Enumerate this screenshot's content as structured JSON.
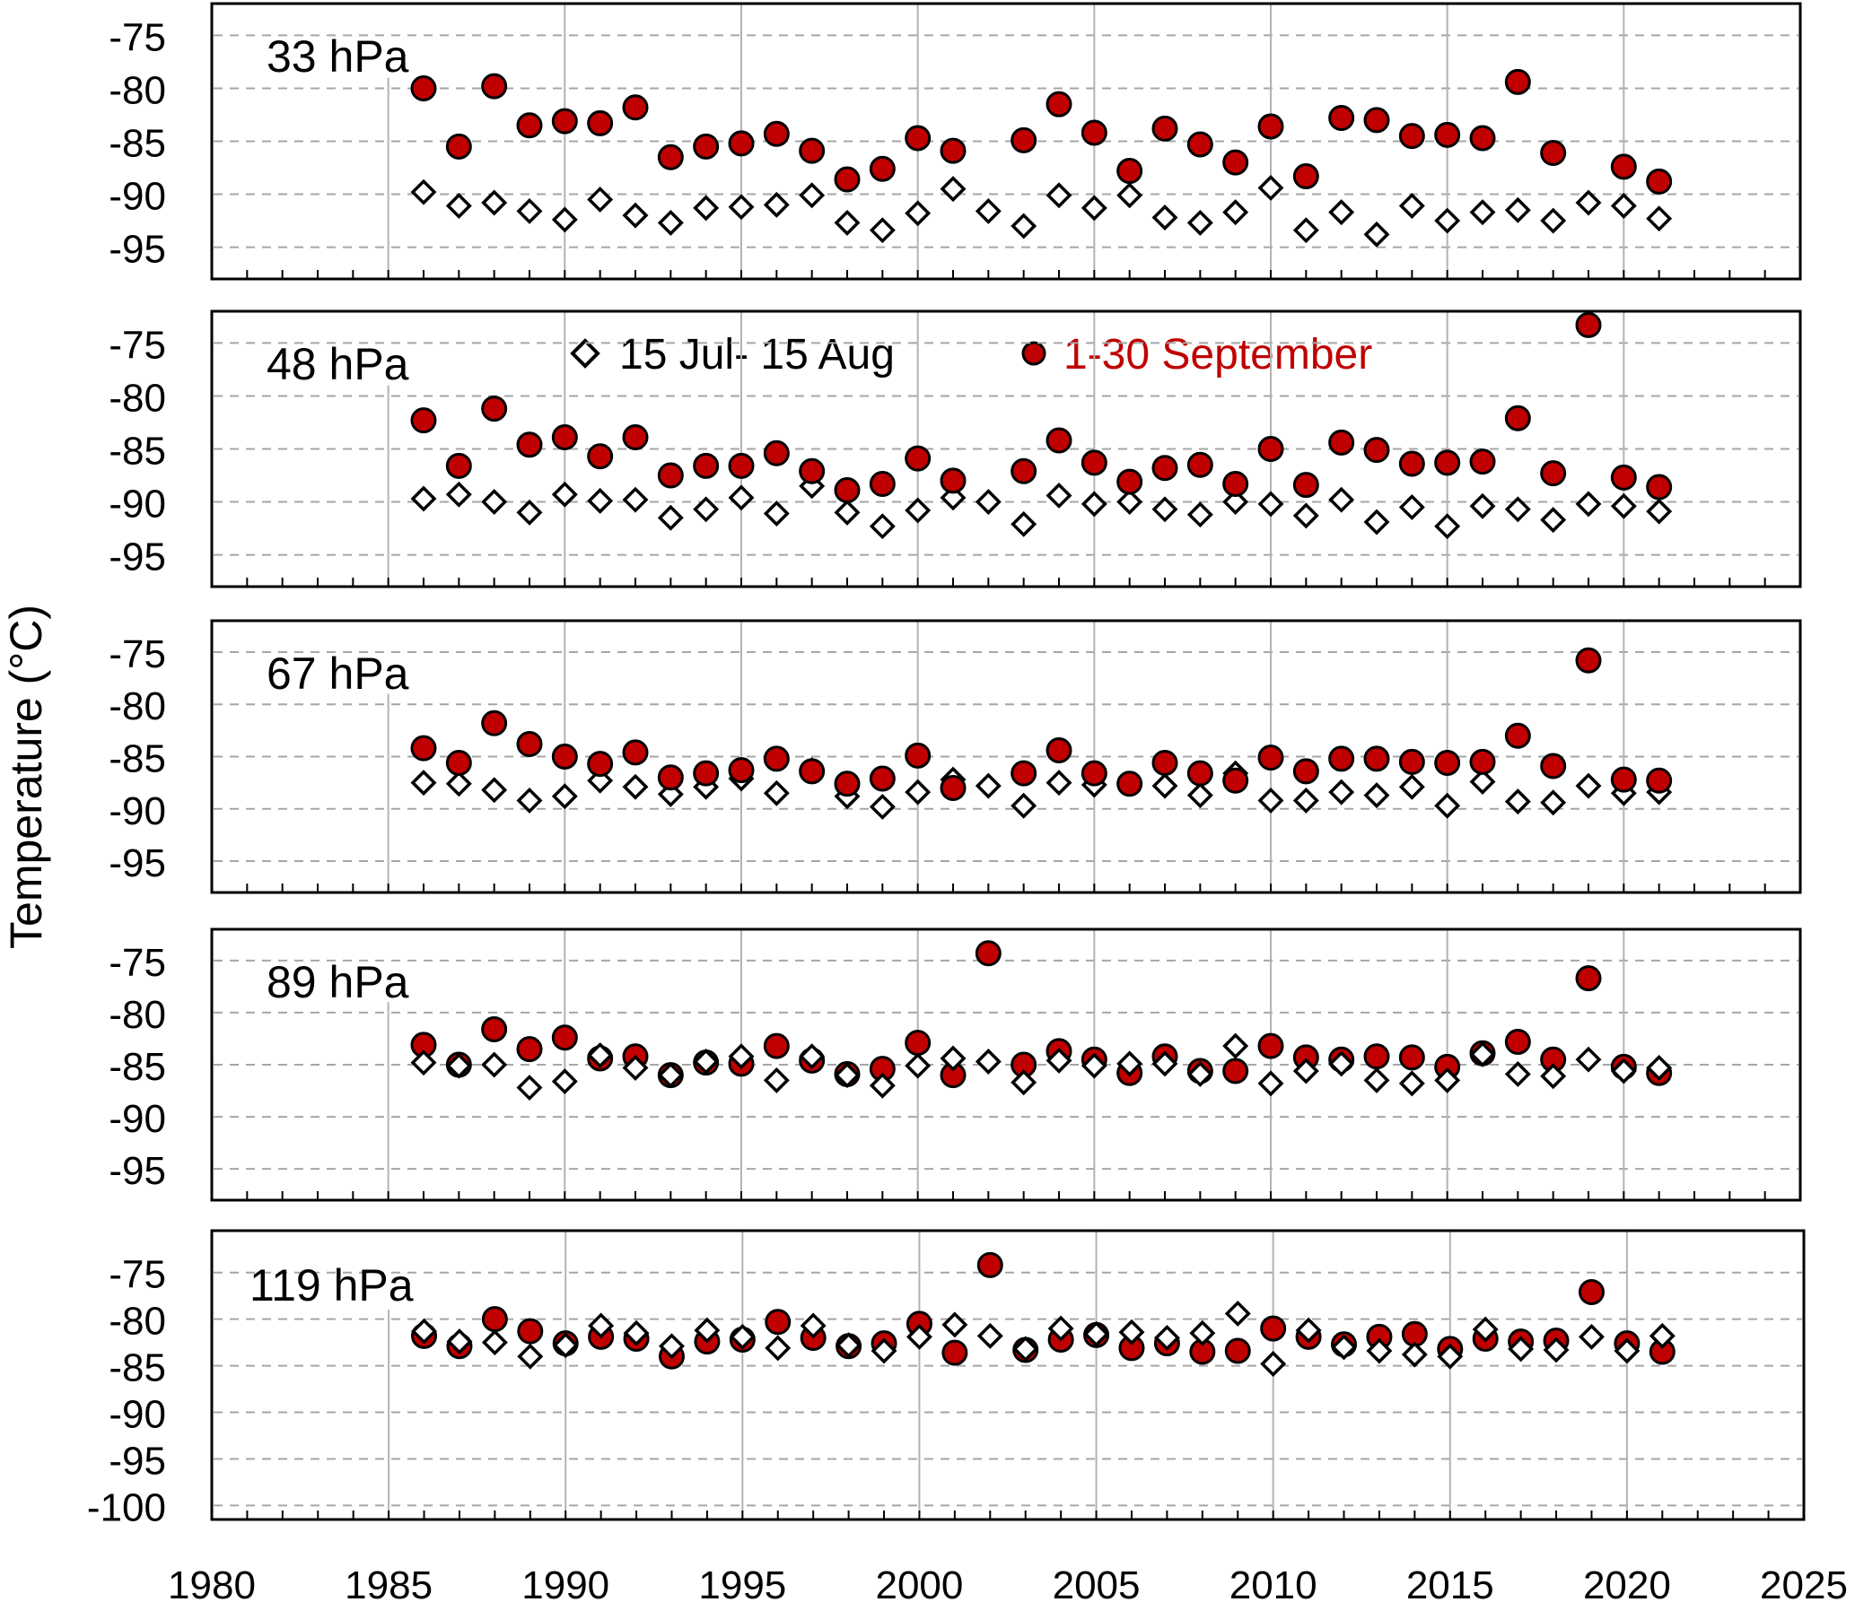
{
  "figure": {
    "ylabel": "Temperature (°C)"
  },
  "legend": {
    "diamond_label": "15 Jul- 15 Aug",
    "circle_label": "1-30 September"
  },
  "colors": {
    "circle_fill": "#c00000",
    "circle_text": "#c00000",
    "diamond_fill": "#ffffff",
    "marker_stroke": "#000000",
    "vgrid": "#b3b3b3",
    "hgrid": "#a6a6a6",
    "axis": "#000000"
  },
  "chart_data": [
    {
      "type": "scatter",
      "panel_label": "33 hPa",
      "ylim": [
        -98,
        -72
      ],
      "y_ticks": [
        -75,
        -80,
        -85,
        -90,
        -95
      ],
      "x_ticks": [
        1980,
        1985,
        1990,
        1995,
        2000,
        2005,
        2010,
        2015,
        2020,
        2025
      ],
      "xlim": [
        1980,
        2025
      ],
      "x": [
        1986,
        1987,
        1988,
        1989,
        1990,
        1991,
        1992,
        1993,
        1994,
        1995,
        1996,
        1997,
        1998,
        1999,
        2000,
        2001,
        2002,
        2003,
        2004,
        2005,
        2006,
        2007,
        2008,
        2009,
        2010,
        2011,
        2012,
        2013,
        2014,
        2015,
        2016,
        2017,
        2018,
        2019,
        2020,
        2021
      ],
      "series": [
        {
          "name": "15 Jul- 15 Aug",
          "marker": "diamond",
          "values": [
            -89.8,
            -91.1,
            -90.8,
            -91.6,
            -92.4,
            -90.5,
            -92.0,
            -92.7,
            -91.3,
            -91.2,
            -91.0,
            -90.1,
            -92.7,
            -93.4,
            -91.8,
            -89.5,
            -91.6,
            -93.0,
            -90.1,
            -91.3,
            -90.1,
            -92.2,
            -92.7,
            -91.7,
            -89.4,
            -93.4,
            -91.7,
            -93.8,
            -91.1,
            -92.5,
            -91.7,
            -91.5,
            -92.5,
            -90.8,
            -91.1,
            -92.3
          ]
        },
        {
          "name": "1-30 September",
          "marker": "circle",
          "values": [
            -80.0,
            -85.5,
            -79.8,
            -83.5,
            -83.1,
            -83.3,
            -81.8,
            -86.5,
            -85.5,
            -85.2,
            -84.3,
            -85.9,
            -88.6,
            -87.6,
            -84.7,
            -85.9,
            null,
            -84.9,
            -81.5,
            -84.2,
            -87.8,
            -83.8,
            -85.3,
            -87.0,
            -83.6,
            -88.3,
            -82.8,
            -83.0,
            -84.5,
            -84.4,
            -84.7,
            -79.4,
            -86.1,
            null,
            -87.4,
            -88.8
          ]
        }
      ]
    },
    {
      "type": "scatter",
      "panel_label": "48 hPa",
      "ylim": [
        -98,
        -72
      ],
      "y_ticks": [
        -75,
        -80,
        -85,
        -90,
        -95
      ],
      "x_ticks": [
        1980,
        1985,
        1990,
        1995,
        2000,
        2005,
        2010,
        2015,
        2020,
        2025
      ],
      "xlim": [
        1980,
        2025
      ],
      "x": [
        1986,
        1987,
        1988,
        1989,
        1990,
        1991,
        1992,
        1993,
        1994,
        1995,
        1996,
        1997,
        1998,
        1999,
        2000,
        2001,
        2002,
        2003,
        2004,
        2005,
        2006,
        2007,
        2008,
        2009,
        2010,
        2011,
        2012,
        2013,
        2014,
        2015,
        2016,
        2017,
        2018,
        2019,
        2020,
        2021
      ],
      "series": [
        {
          "name": "15 Jul- 15 Aug",
          "marker": "diamond",
          "values": [
            -89.7,
            -89.3,
            -90.0,
            -91.0,
            -89.3,
            -89.9,
            -89.8,
            -91.5,
            -90.7,
            -89.6,
            -91.1,
            -88.5,
            -91.0,
            -92.3,
            -90.8,
            -89.6,
            -90.0,
            -92.1,
            -89.4,
            -90.2,
            -90.0,
            -90.7,
            -91.2,
            -90.0,
            -90.2,
            -91.3,
            -89.8,
            -91.9,
            -90.5,
            -92.3,
            -90.4,
            -90.7,
            -91.7,
            -90.2,
            -90.4,
            -90.9
          ]
        },
        {
          "name": "1-30 September",
          "marker": "circle",
          "values": [
            -82.3,
            -86.6,
            -81.2,
            -84.6,
            -83.9,
            -85.7,
            -83.9,
            -87.5,
            -86.6,
            -86.6,
            -85.4,
            -87.1,
            -88.9,
            -88.3,
            -85.9,
            -88.0,
            null,
            -87.1,
            -84.2,
            -86.3,
            -88.1,
            -86.8,
            -86.5,
            -88.3,
            -85.0,
            -88.4,
            -84.4,
            -85.1,
            -86.4,
            -86.3,
            -86.2,
            -82.1,
            -87.3,
            -73.3,
            -87.7,
            -88.6
          ]
        }
      ]
    },
    {
      "type": "scatter",
      "panel_label": "67 hPa",
      "ylim": [
        -98,
        -72
      ],
      "y_ticks": [
        -75,
        -80,
        -85,
        -90,
        -95
      ],
      "x_ticks": [
        1980,
        1985,
        1990,
        1995,
        2000,
        2005,
        2010,
        2015,
        2020,
        2025
      ],
      "xlim": [
        1980,
        2025
      ],
      "x": [
        1986,
        1987,
        1988,
        1989,
        1990,
        1991,
        1992,
        1993,
        1994,
        1995,
        1996,
        1997,
        1998,
        1999,
        2000,
        2001,
        2002,
        2003,
        2004,
        2005,
        2006,
        2007,
        2008,
        2009,
        2010,
        2011,
        2012,
        2013,
        2014,
        2015,
        2016,
        2017,
        2018,
        2019,
        2020,
        2021
      ],
      "series": [
        {
          "name": "15 Jul- 15 Aug",
          "marker": "diamond",
          "values": [
            -87.5,
            -87.6,
            -88.2,
            -89.2,
            -88.8,
            -87.3,
            -87.9,
            -88.6,
            -87.9,
            -87.1,
            -88.5,
            -86.3,
            -88.8,
            -89.8,
            -88.4,
            -87.2,
            -87.8,
            -89.7,
            -87.5,
            -87.7,
            -87.6,
            -87.8,
            -88.7,
            -86.6,
            -89.2,
            -89.2,
            -88.4,
            -88.7,
            -87.9,
            -89.7,
            -87.4,
            -89.3,
            -89.4,
            -87.8,
            -88.5,
            -88.4
          ]
        },
        {
          "name": "1-30 September",
          "marker": "circle",
          "values": [
            -84.2,
            -85.6,
            -81.8,
            -83.8,
            -85.0,
            -85.7,
            -84.6,
            -87.0,
            -86.6,
            -86.3,
            -85.2,
            -86.4,
            -87.6,
            -87.1,
            -84.9,
            -88.0,
            null,
            -86.6,
            -84.4,
            -86.6,
            -87.6,
            -85.6,
            -86.6,
            -87.3,
            -85.1,
            -86.4,
            -85.2,
            -85.2,
            -85.5,
            -85.6,
            -85.5,
            -83.0,
            -85.9,
            -75.8,
            -87.2,
            -87.3
          ]
        }
      ]
    },
    {
      "type": "scatter",
      "panel_label": "89 hPa",
      "ylim": [
        -98,
        -72
      ],
      "y_ticks": [
        -75,
        -80,
        -85,
        -90,
        -95
      ],
      "x_ticks": [
        1980,
        1985,
        1990,
        1995,
        2000,
        2005,
        2010,
        2015,
        2020,
        2025
      ],
      "xlim": [
        1980,
        2025
      ],
      "x": [
        1986,
        1987,
        1988,
        1989,
        1990,
        1991,
        1992,
        1993,
        1994,
        1995,
        1996,
        1997,
        1998,
        1999,
        2000,
        2001,
        2002,
        2003,
        2004,
        2005,
        2006,
        2007,
        2008,
        2009,
        2010,
        2011,
        2012,
        2013,
        2014,
        2015,
        2016,
        2017,
        2018,
        2019,
        2020,
        2021
      ],
      "series": [
        {
          "name": "15 Jul- 15 Aug",
          "marker": "diamond",
          "values": [
            -84.8,
            -85.1,
            -85.0,
            -87.2,
            -86.6,
            -84.1,
            -85.3,
            -86.0,
            -84.7,
            -84.2,
            -86.5,
            -84.2,
            -86.0,
            -87.0,
            -85.1,
            -84.4,
            -84.7,
            -86.7,
            -84.6,
            -85.1,
            -84.9,
            -84.9,
            -85.9,
            -83.2,
            -86.8,
            -85.6,
            -84.9,
            -86.5,
            -86.8,
            -86.5,
            -84.0,
            -85.9,
            -86.1,
            -84.5,
            -85.6,
            -85.3
          ]
        },
        {
          "name": "1-30 September",
          "marker": "circle",
          "values": [
            -83.1,
            -85.0,
            -81.6,
            -83.5,
            -82.4,
            -84.4,
            -84.2,
            -86.0,
            -84.8,
            -84.9,
            -83.2,
            -84.6,
            -85.9,
            -85.4,
            -82.9,
            -86.0,
            -74.3,
            -85.0,
            -83.7,
            -84.5,
            -85.8,
            -84.2,
            -85.6,
            -85.6,
            -83.2,
            -84.3,
            -84.5,
            -84.2,
            -84.3,
            -85.2,
            -83.9,
            -82.8,
            -84.5,
            -76.7,
            -85.2,
            -85.8
          ]
        }
      ]
    },
    {
      "type": "scatter",
      "panel_label": "119 hPa",
      "ylim": [
        -101.5,
        -70.5
      ],
      "y_ticks": [
        -75,
        -80,
        -85,
        -90,
        -95,
        -100
      ],
      "x_ticks": [
        1980,
        1985,
        1990,
        1995,
        2000,
        2005,
        2010,
        2015,
        2020,
        2025
      ],
      "xlim": [
        1980,
        2025
      ],
      "x": [
        1986,
        1987,
        1988,
        1989,
        1990,
        1991,
        1992,
        1993,
        1994,
        1995,
        1996,
        1997,
        1998,
        1999,
        2000,
        2001,
        2002,
        2003,
        2004,
        2005,
        2006,
        2007,
        2008,
        2009,
        2010,
        2011,
        2012,
        2013,
        2014,
        2015,
        2016,
        2017,
        2018,
        2019,
        2020,
        2021
      ],
      "series": [
        {
          "name": "15 Jul- 15 Aug",
          "marker": "diamond",
          "values": [
            -81.3,
            -82.4,
            -82.5,
            -84.0,
            -82.8,
            -80.7,
            -81.5,
            -82.9,
            -81.2,
            -81.9,
            -83.1,
            -80.7,
            -82.8,
            -83.4,
            -81.9,
            -80.6,
            -81.8,
            -83.2,
            -81.0,
            -81.6,
            -81.4,
            -82.0,
            -81.5,
            -79.4,
            -84.8,
            -81.2,
            -83.0,
            -83.4,
            -83.8,
            -84.0,
            -81.1,
            -83.2,
            -83.3,
            -81.9,
            -83.4,
            -81.8
          ]
        },
        {
          "name": "1-30 September",
          "marker": "circle",
          "values": [
            -81.8,
            -82.9,
            -80.0,
            -81.3,
            -82.6,
            -81.9,
            -82.1,
            -84.0,
            -82.4,
            -82.2,
            -80.3,
            -82.0,
            -82.9,
            -82.6,
            -80.5,
            -83.6,
            -74.2,
            -83.3,
            -82.2,
            -81.7,
            -83.1,
            -82.6,
            -83.5,
            -83.4,
            -81.0,
            -81.9,
            -82.7,
            -81.9,
            -81.6,
            -83.2,
            -82.1,
            -82.4,
            -82.3,
            -77.1,
            -82.6,
            -83.5
          ]
        }
      ]
    }
  ]
}
